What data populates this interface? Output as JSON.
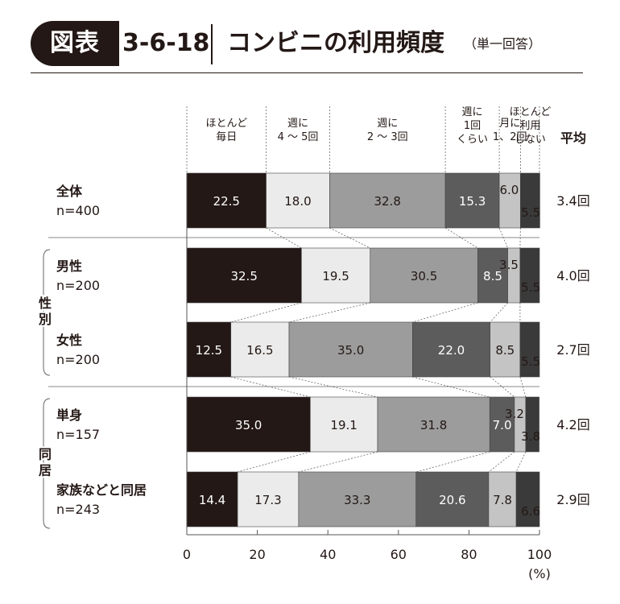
{
  "header": {
    "badge": "図表",
    "figure_number": "3-6-18",
    "title": "コンビニの利用頻度",
    "subtitle": "（単一回答）"
  },
  "colors": {
    "segments": [
      "#231815",
      "#ebebeb",
      "#9c9c9c",
      "#5c5c5c",
      "#c4c4c4",
      "#3a3a3a"
    ],
    "text": "#231815"
  },
  "chart_data": {
    "type": "bar",
    "orientation": "horizontal",
    "stacked": true,
    "xlim": [
      0,
      100
    ],
    "x_ticks": [
      "0",
      "20",
      "40",
      "60",
      "80",
      "100"
    ],
    "x_unit": "(%)",
    "legend_categories": [
      [
        "ほとんど",
        "毎日"
      ],
      [
        "週に",
        "4 〜 5回"
      ],
      [
        "週に",
        "2 〜 3回"
      ],
      [
        "週に",
        "1回",
        "くらい"
      ],
      [
        "月に",
        "1、2回"
      ],
      [
        "ほとんど",
        "利用",
        "しない"
      ]
    ],
    "average_header": "平均",
    "groups": [
      {
        "label": "",
        "rows": [
          0
        ]
      },
      {
        "label": "性別",
        "rows": [
          1,
          2
        ]
      },
      {
        "label": "同居",
        "rows": [
          3,
          4
        ]
      }
    ],
    "rows": [
      {
        "label": "全体",
        "n": "n=400",
        "values": [
          22.5,
          18.0,
          32.8,
          15.3,
          6.0,
          5.5
        ],
        "average": "3.4回"
      },
      {
        "label": "男性",
        "n": "n=200",
        "values": [
          32.5,
          19.5,
          30.5,
          8.5,
          3.5,
          5.5
        ],
        "average": "4.0回"
      },
      {
        "label": "女性",
        "n": "n=200",
        "values": [
          12.5,
          16.5,
          35.0,
          22.0,
          8.5,
          5.5
        ],
        "average": "2.7回"
      },
      {
        "label": "単身",
        "n": "n=157",
        "values": [
          35.0,
          19.1,
          31.8,
          7.0,
          3.2,
          3.8
        ],
        "average": "4.2回"
      },
      {
        "label": "家族などと同居",
        "n": "n=243",
        "values": [
          14.4,
          17.3,
          33.3,
          20.6,
          7.8,
          6.6
        ],
        "average": "2.9回"
      }
    ]
  }
}
